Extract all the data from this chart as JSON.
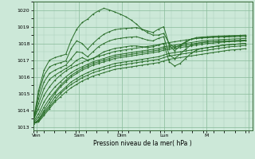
{
  "title": "",
  "xlabel": "Pression niveau de la mer( hPa )",
  "ylabel": "",
  "bg_color": "#cce8d8",
  "grid_color_major": "#88bb99",
  "grid_color_minor": "#aaccbb",
  "line_color": "#2a6e2a",
  "ylim": [
    1012.8,
    1020.5
  ],
  "xlim": [
    0,
    124
  ],
  "yticks": [
    1013,
    1014,
    1015,
    1016,
    1017,
    1018,
    1019,
    1020
  ],
  "xtick_positions": [
    2,
    26,
    50,
    74,
    98,
    122
  ],
  "xtick_labels": [
    "Ven",
    "Sam",
    "Dim",
    "Lun",
    "M",
    ""
  ],
  "series": [
    [
      1013.2,
      1013.4,
      1013.9,
      1014.3,
      1014.8,
      1015.1,
      1015.4,
      1015.7,
      1015.9,
      1016.1,
      1016.25,
      1016.4,
      1016.5,
      1016.6,
      1016.7,
      1016.8,
      1016.85,
      1016.9,
      1016.95,
      1017.0,
      1017.05,
      1017.1,
      1017.15,
      1017.2,
      1017.3,
      1017.4,
      1017.45,
      1017.5,
      1017.55,
      1017.6,
      1017.65,
      1017.7,
      1017.75,
      1017.8,
      1017.85,
      1017.9,
      1017.92,
      1017.95,
      1017.97,
      1018.0
    ],
    [
      1013.2,
      1013.35,
      1013.8,
      1014.2,
      1014.6,
      1015.0,
      1015.3,
      1015.55,
      1015.75,
      1015.95,
      1016.1,
      1016.25,
      1016.35,
      1016.45,
      1016.55,
      1016.65,
      1016.7,
      1016.75,
      1016.8,
      1016.85,
      1016.9,
      1016.95,
      1017.0,
      1017.05,
      1017.15,
      1017.25,
      1017.3,
      1017.35,
      1017.4,
      1017.45,
      1017.5,
      1017.55,
      1017.6,
      1017.65,
      1017.7,
      1017.75,
      1017.8,
      1017.82,
      1017.85,
      1017.88
    ],
    [
      1013.2,
      1013.3,
      1013.7,
      1014.1,
      1014.5,
      1014.8,
      1015.1,
      1015.35,
      1015.55,
      1015.75,
      1015.9,
      1016.05,
      1016.15,
      1016.25,
      1016.35,
      1016.45,
      1016.5,
      1016.55,
      1016.6,
      1016.65,
      1016.7,
      1016.75,
      1016.8,
      1016.85,
      1016.95,
      1017.05,
      1017.1,
      1017.15,
      1017.2,
      1017.25,
      1017.3,
      1017.35,
      1017.4,
      1017.45,
      1017.5,
      1017.55,
      1017.6,
      1017.62,
      1017.65,
      1017.68
    ],
    [
      1013.2,
      1013.45,
      1014.0,
      1014.5,
      1015.0,
      1015.4,
      1015.7,
      1016.0,
      1016.2,
      1016.4,
      1016.55,
      1016.7,
      1016.8,
      1016.9,
      1017.0,
      1017.1,
      1017.15,
      1017.2,
      1017.25,
      1017.3,
      1017.35,
      1017.4,
      1017.45,
      1017.5,
      1017.6,
      1017.65,
      1017.7,
      1017.75,
      1017.8,
      1017.85,
      1017.9,
      1017.95,
      1018.0,
      1018.02,
      1018.05,
      1018.08,
      1018.1,
      1018.12,
      1018.13,
      1018.15
    ],
    [
      1013.25,
      1013.6,
      1014.2,
      1014.7,
      1015.1,
      1015.5,
      1015.8,
      1016.1,
      1016.3,
      1016.5,
      1016.65,
      1016.8,
      1016.9,
      1017.0,
      1017.1,
      1017.2,
      1017.25,
      1017.3,
      1017.35,
      1017.4,
      1017.45,
      1017.5,
      1017.55,
      1017.6,
      1017.7,
      1017.75,
      1017.8,
      1017.85,
      1017.9,
      1017.95,
      1018.0,
      1018.05,
      1018.08,
      1018.1,
      1018.12,
      1018.14,
      1018.15,
      1018.17,
      1018.18,
      1018.2
    ],
    [
      1013.3,
      1013.8,
      1014.5,
      1015.0,
      1015.4,
      1015.7,
      1016.0,
      1016.25,
      1016.45,
      1016.6,
      1016.75,
      1016.9,
      1017.0,
      1017.1,
      1017.2,
      1017.3,
      1017.35,
      1017.4,
      1017.45,
      1017.5,
      1017.55,
      1017.6,
      1017.65,
      1017.7,
      1017.8,
      1017.85,
      1017.9,
      1017.95,
      1018.0,
      1018.05,
      1018.1,
      1018.15,
      1018.18,
      1018.2,
      1018.22,
      1018.24,
      1018.25,
      1018.27,
      1018.28,
      1018.3
    ],
    [
      1013.4,
      1014.1,
      1014.9,
      1015.4,
      1015.8,
      1016.1,
      1016.35,
      1016.55,
      1016.7,
      1016.85,
      1017.0,
      1017.12,
      1017.22,
      1017.32,
      1017.42,
      1017.52,
      1017.57,
      1017.62,
      1017.67,
      1017.72,
      1017.77,
      1017.82,
      1017.87,
      1017.92,
      1018.0,
      1018.05,
      1018.1,
      1018.15,
      1018.2,
      1018.25,
      1018.3,
      1018.35,
      1018.37,
      1018.4,
      1018.42,
      1018.43,
      1018.44,
      1018.45,
      1018.46,
      1018.47
    ],
    [
      1013.3,
      1014.4,
      1015.3,
      1015.85,
      1016.1,
      1016.3,
      1016.5,
      1016.7,
      1017.0,
      1017.15,
      1017.0,
      1017.1,
      1017.3,
      1017.5,
      1017.6,
      1017.7,
      1017.75,
      1017.8,
      1017.85,
      1017.85,
      1017.8,
      1017.75,
      1017.8,
      1017.9,
      1018.0,
      1016.9,
      1016.65,
      1016.8,
      1017.1,
      1017.4,
      1017.6,
      1017.7,
      1017.75,
      1017.8,
      1017.85,
      1017.9,
      1017.92,
      1017.95,
      1017.97,
      1018.0
    ],
    [
      1013.3,
      1014.7,
      1015.7,
      1016.2,
      1016.4,
      1016.55,
      1016.7,
      1017.1,
      1017.5,
      1017.45,
      1017.2,
      1017.5,
      1017.8,
      1018.0,
      1018.15,
      1018.25,
      1018.3,
      1018.35,
      1018.38,
      1018.4,
      1018.3,
      1018.2,
      1018.15,
      1018.3,
      1018.4,
      1017.3,
      1017.1,
      1017.35,
      1017.65,
      1017.9,
      1018.0,
      1018.05,
      1018.1,
      1018.1,
      1018.12,
      1018.13,
      1018.14,
      1018.15,
      1018.16,
      1018.17
    ],
    [
      1013.3,
      1015.0,
      1016.1,
      1016.6,
      1016.75,
      1016.85,
      1016.95,
      1017.7,
      1018.15,
      1018.0,
      1017.65,
      1018.0,
      1018.3,
      1018.55,
      1018.7,
      1018.82,
      1018.87,
      1018.9,
      1018.92,
      1018.95,
      1018.85,
      1018.75,
      1018.65,
      1018.85,
      1019.0,
      1017.9,
      1017.55,
      1017.85,
      1018.05,
      1018.25,
      1018.35,
      1018.38,
      1018.4,
      1018.42,
      1018.44,
      1018.45,
      1018.46,
      1018.47,
      1018.48,
      1018.5
    ],
    [
      1013.3,
      1015.2,
      1016.4,
      1017.0,
      1017.15,
      1017.25,
      1017.35,
      1018.2,
      1018.85,
      1019.25,
      1019.45,
      1019.75,
      1019.95,
      1020.1,
      1020.0,
      1019.88,
      1019.75,
      1019.6,
      1019.4,
      1019.15,
      1018.85,
      1018.65,
      1018.5,
      1018.5,
      1018.6,
      1018.0,
      1017.75,
      1017.9,
      1018.1,
      1018.25,
      1018.3,
      1018.32,
      1018.34,
      1018.36,
      1018.37,
      1018.38,
      1018.39,
      1018.4,
      1018.41,
      1018.42
    ]
  ]
}
